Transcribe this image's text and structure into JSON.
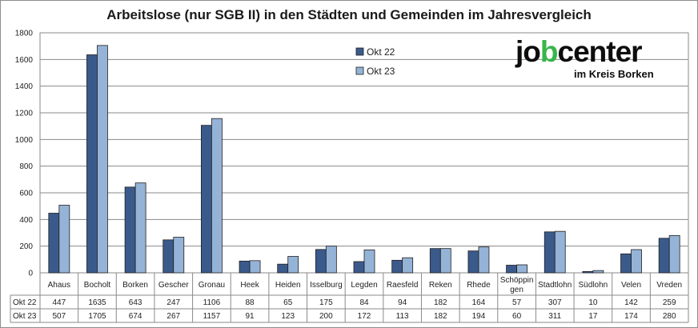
{
  "chart_data": {
    "type": "bar",
    "title": "Arbeitslose (nur SGB II) in den Städten und Gemeinden im Jahresvergleich",
    "categories": [
      "Ahaus",
      "Bocholt",
      "Borken",
      "Gescher",
      "Gronau",
      "Heek",
      "Heiden",
      "Isselburg",
      "Legden",
      "Raesfeld",
      "Reken",
      "Rhede",
      "Schöppingen",
      "Stadtlohn",
      "Südlohn",
      "Velen",
      "Vreden"
    ],
    "category_labels": [
      [
        "Ahaus"
      ],
      [
        "Bocholt"
      ],
      [
        "Borken"
      ],
      [
        "Gescher"
      ],
      [
        "Gronau"
      ],
      [
        "Heek"
      ],
      [
        "Heiden"
      ],
      [
        "Isselburg"
      ],
      [
        "Legden"
      ],
      [
        "Raesfeld"
      ],
      [
        "Reken"
      ],
      [
        "Rhede"
      ],
      [
        "Schöppin",
        "gen"
      ],
      [
        "Stadtlohn"
      ],
      [
        "Südlohn"
      ],
      [
        "Velen"
      ],
      [
        "Vreden"
      ]
    ],
    "series": [
      {
        "name": "Okt 22",
        "color": "#3b5a8c",
        "values": [
          447,
          1635,
          643,
          247,
          1106,
          88,
          65,
          175,
          84,
          94,
          182,
          164,
          57,
          307,
          10,
          142,
          259
        ]
      },
      {
        "name": "Okt 23",
        "color": "#95b3d7",
        "values": [
          507,
          1705,
          674,
          267,
          1157,
          91,
          123,
          200,
          172,
          113,
          182,
          194,
          60,
          311,
          17,
          174,
          280
        ]
      }
    ],
    "ylim": [
      0,
      1800
    ],
    "yticks": [
      0,
      200,
      400,
      600,
      800,
      1000,
      1200,
      1400,
      1600,
      1800
    ],
    "grid": true,
    "legend": "top-center",
    "data_table": true
  },
  "logo": {
    "main_pre": "jo",
    "main_b": "b",
    "main_post": "center",
    "sub": "im Kreis Borken",
    "accent": "#39b54a"
  }
}
